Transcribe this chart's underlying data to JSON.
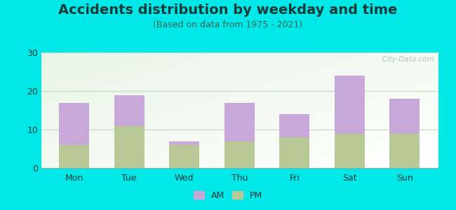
{
  "title": "Accidents distribution by weekday and time",
  "subtitle": "(Based on data from 1975 - 2021)",
  "categories": [
    "Mon",
    "Tue",
    "Wed",
    "Thu",
    "Fri",
    "Sat",
    "Sun"
  ],
  "pm_values": [
    6,
    11,
    6,
    7,
    8,
    9,
    9
  ],
  "am_values": [
    11,
    8,
    1,
    10,
    6,
    15,
    9
  ],
  "am_color": "#c8a8d8",
  "pm_color": "#b8c896",
  "background_color": "#00e8e8",
  "ylim": [
    0,
    30
  ],
  "yticks": [
    0,
    10,
    20,
    30
  ],
  "watermark": "  City-Data.com",
  "legend_am": "AM",
  "legend_pm": "PM",
  "title_fontsize": 14,
  "subtitle_fontsize": 9,
  "tick_fontsize": 9,
  "bar_width": 0.55,
  "grid_color": "#ccddcc",
  "plot_bg_colors": [
    "#e8f5e0",
    "#f5fff5"
  ],
  "text_color": "#1a3a3a",
  "subtitle_color": "#336655"
}
